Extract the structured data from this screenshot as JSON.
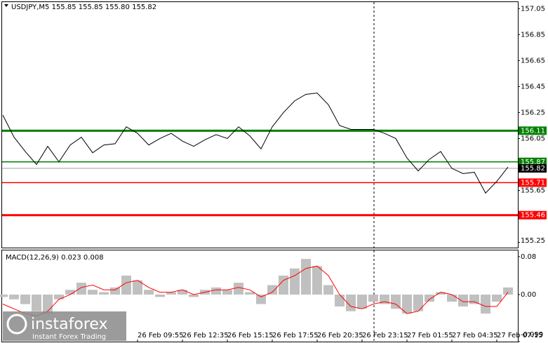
{
  "logo": {
    "name": "instaforex",
    "tagline": "Instant Forex Trading"
  },
  "chart_data": [
    {
      "type": "line",
      "title": "USDJPY,M5  155.85 155.85 155.80 155.82",
      "color": "#000000",
      "categories": [
        null,
        null,
        null,
        null,
        null,
        null,
        null,
        null,
        null,
        null,
        null,
        null,
        "26 Feb 09:55",
        null,
        null,
        null,
        "26 Feb 12:35",
        null,
        null,
        null,
        "26 Feb 15:15",
        null,
        null,
        null,
        "26 Feb 17:55",
        null,
        null,
        null,
        "26 Feb 20:35",
        null,
        null,
        null,
        "26 Feb 23:15",
        null,
        null,
        null,
        "27 Feb 01:55",
        null,
        null,
        null,
        "27 Feb 04:35",
        null,
        null,
        null,
        "27 Feb 07:15",
        null
      ],
      "values": [
        156.23,
        156.06,
        155.95,
        155.85,
        155.99,
        155.87,
        156.0,
        156.06,
        155.94,
        156.0,
        156.01,
        156.14,
        156.09,
        156.0,
        156.05,
        156.09,
        156.03,
        155.99,
        156.04,
        156.08,
        156.05,
        156.14,
        156.07,
        155.97,
        156.14,
        156.25,
        156.34,
        156.39,
        156.4,
        156.31,
        156.15,
        156.12,
        156.12,
        156.12,
        156.09,
        156.05,
        155.9,
        155.8,
        155.89,
        155.95,
        155.82,
        155.78,
        155.79,
        155.63,
        155.72,
        155.83
      ],
      "ylim": [
        155.21,
        157.1
      ],
      "yticks": [
        157.05,
        156.85,
        156.65,
        156.45,
        156.25,
        156.05,
        155.65,
        155.25
      ],
      "levels": [
        {
          "value": 156.11,
          "color": "#008000",
          "tag_color": "#008000",
          "thick": true
        },
        {
          "value": 155.87,
          "color": "#008000",
          "tag_color": "#008000",
          "thick": false
        },
        {
          "value": 155.82,
          "color": "#c0c0c0",
          "tag_color": "#000000",
          "thick": false
        },
        {
          "value": 155.71,
          "color": "#ff0000",
          "tag_color": "#ff0000",
          "thick": false
        },
        {
          "value": 155.46,
          "color": "#ff0000",
          "tag_color": "#ff0000",
          "thick": true
        }
      ]
    },
    {
      "type": "macd",
      "title": "MACD(12,26,9) 0.023 0.008",
      "histogram": {
        "color": "#c0c0c0",
        "values": [
          -0.005,
          -0.01,
          -0.02,
          -0.035,
          -0.04,
          -0.01,
          0.01,
          0.025,
          0.01,
          0.005,
          0.015,
          0.04,
          0.03,
          0.01,
          -0.005,
          0.005,
          0.01,
          -0.005,
          0.01,
          0.015,
          0.01,
          0.025,
          0.005,
          -0.02,
          0.02,
          0.04,
          0.055,
          0.075,
          0.06,
          0.02,
          -0.025,
          -0.035,
          -0.03,
          -0.015,
          -0.02,
          -0.03,
          -0.04,
          -0.035,
          -0.015,
          0.005,
          -0.015,
          -0.025,
          -0.02,
          -0.04,
          -0.015,
          0.015
        ]
      },
      "signal": {
        "color": "#ff0000",
        "values": [
          -0.02,
          -0.03,
          -0.04,
          -0.045,
          -0.035,
          -0.01,
          0.0,
          0.015,
          0.02,
          0.01,
          0.01,
          0.025,
          0.03,
          0.015,
          0.005,
          0.005,
          0.01,
          0.0,
          0.005,
          0.01,
          0.01,
          0.015,
          0.01,
          -0.005,
          0.005,
          0.03,
          0.04,
          0.055,
          0.06,
          0.04,
          0.0,
          -0.025,
          -0.03,
          -0.02,
          -0.015,
          -0.02,
          -0.04,
          -0.035,
          -0.01,
          0.005,
          0.0,
          -0.015,
          -0.015,
          -0.025,
          -0.025,
          0.005
        ]
      },
      "ylim": [
        -0.099,
        0.093
      ],
      "yticks": [
        0.08,
        {
          "value": 0,
          "label": "0.00"
        },
        -0.099
      ]
    }
  ]
}
